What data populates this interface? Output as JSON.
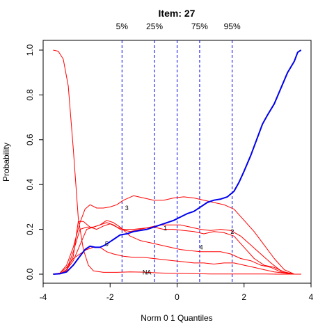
{
  "chart_data": {
    "type": "line",
    "title": "Item:  27",
    "xlabel": "Norm 0 1 Quantiles",
    "ylabel": "Probability",
    "xlim": [
      -4,
      4
    ],
    "ylim": [
      0,
      1
    ],
    "x_ticks": [
      "-4",
      "-2",
      "0",
      "2",
      "4"
    ],
    "y_ticks": [
      "0.0",
      "0.2",
      "0.4",
      "0.6",
      "0.8",
      "1.0"
    ],
    "grid": false,
    "legend": "none",
    "quantile_lines": [
      {
        "label": "5%",
        "x": -1.645
      },
      {
        "label": "25%",
        "x": -0.674
      },
      {
        "label": "",
        "x": 0
      },
      {
        "label": "75%",
        "x": 0.674
      },
      {
        "label": "95%",
        "x": 1.645
      }
    ],
    "series": [
      {
        "label": "3",
        "label_at": [
          -1.5,
          0.295
        ],
        "color": "#ff0000",
        "points": [
          [
            -3.7,
            0
          ],
          [
            -3.5,
            0.005
          ],
          [
            -3.3,
            0.04
          ],
          [
            -3.1,
            0.12
          ],
          [
            -2.9,
            0.23
          ],
          [
            -2.75,
            0.29
          ],
          [
            -2.6,
            0.31
          ],
          [
            -2.4,
            0.295
          ],
          [
            -2.2,
            0.295
          ],
          [
            -2.0,
            0.3
          ],
          [
            -1.8,
            0.31
          ],
          [
            -1.6,
            0.33
          ],
          [
            -1.3,
            0.35
          ],
          [
            -1.0,
            0.34
          ],
          [
            -0.7,
            0.33
          ],
          [
            -0.4,
            0.33
          ],
          [
            -0.1,
            0.34
          ],
          [
            0.2,
            0.345
          ],
          [
            0.5,
            0.34
          ],
          [
            0.8,
            0.33
          ],
          [
            1.1,
            0.32
          ],
          [
            1.4,
            0.31
          ],
          [
            1.7,
            0.29
          ],
          [
            2.0,
            0.24
          ],
          [
            2.3,
            0.19
          ],
          [
            2.6,
            0.13
          ],
          [
            2.9,
            0.07
          ],
          [
            3.2,
            0.02
          ],
          [
            3.5,
            0
          ],
          [
            3.7,
            0
          ]
        ]
      },
      {
        "label": "2",
        "label_at": [
          1.65,
          0.19
        ],
        "color": "#ff0000",
        "points": [
          [
            -3.7,
            0
          ],
          [
            -3.5,
            0.002
          ],
          [
            -3.3,
            0.02
          ],
          [
            -3.1,
            0.1
          ],
          [
            -2.9,
            0.2
          ],
          [
            -2.7,
            0.21
          ],
          [
            -2.5,
            0.21
          ],
          [
            -2.3,
            0.22
          ],
          [
            -2.1,
            0.23
          ],
          [
            -1.9,
            0.22
          ],
          [
            -1.7,
            0.2
          ],
          [
            -1.4,
            0.19
          ],
          [
            -1.1,
            0.2
          ],
          [
            -0.8,
            0.21
          ],
          [
            -0.5,
            0.22
          ],
          [
            -0.2,
            0.22
          ],
          [
            0.1,
            0.22
          ],
          [
            0.4,
            0.21
          ],
          [
            0.7,
            0.2
          ],
          [
            1.0,
            0.195
          ],
          [
            1.3,
            0.2
          ],
          [
            1.6,
            0.195
          ],
          [
            1.9,
            0.17
          ],
          [
            2.2,
            0.13
          ],
          [
            2.5,
            0.09
          ],
          [
            2.8,
            0.05
          ],
          [
            3.1,
            0.015
          ],
          [
            3.4,
            0
          ],
          [
            3.7,
            0
          ]
        ]
      },
      {
        "label": "1",
        "label_at": [
          -0.35,
          0.205
        ],
        "color": "#ff0000",
        "points": [
          [
            -3.7,
            0
          ],
          [
            -3.5,
            0.001
          ],
          [
            -3.3,
            0.015
          ],
          [
            -3.1,
            0.08
          ],
          [
            -2.95,
            0.235
          ],
          [
            -2.8,
            0.235
          ],
          [
            -2.6,
            0.21
          ],
          [
            -2.4,
            0.2
          ],
          [
            -2.2,
            0.215
          ],
          [
            -2.0,
            0.225
          ],
          [
            -1.8,
            0.21
          ],
          [
            -1.6,
            0.2
          ],
          [
            -1.3,
            0.2
          ],
          [
            -1.0,
            0.205
          ],
          [
            -0.7,
            0.21
          ],
          [
            -0.4,
            0.2
          ],
          [
            -0.1,
            0.2
          ],
          [
            0.2,
            0.195
          ],
          [
            0.5,
            0.19
          ],
          [
            0.8,
            0.18
          ],
          [
            1.1,
            0.19
          ],
          [
            1.4,
            0.185
          ],
          [
            1.7,
            0.17
          ],
          [
            2.0,
            0.12
          ],
          [
            2.3,
            0.07
          ],
          [
            2.6,
            0.04
          ],
          [
            2.9,
            0.03
          ],
          [
            3.2,
            0.01
          ],
          [
            3.5,
            0
          ],
          [
            3.7,
            0
          ]
        ]
      },
      {
        "label": "4",
        "label_at": [
          0.72,
          0.12
        ],
        "color": "#ff0000",
        "points": [
          [
            -3.7,
            0
          ],
          [
            -3.5,
            0.002
          ],
          [
            -3.3,
            0.02
          ],
          [
            -3.1,
            0.06
          ],
          [
            -2.9,
            0.13
          ],
          [
            -2.7,
            0.2
          ],
          [
            -2.5,
            0.21
          ],
          [
            -2.3,
            0.22
          ],
          [
            -2.1,
            0.24
          ],
          [
            -1.9,
            0.23
          ],
          [
            -1.7,
            0.21
          ],
          [
            -1.4,
            0.17
          ],
          [
            -1.1,
            0.15
          ],
          [
            -0.8,
            0.14
          ],
          [
            -0.5,
            0.13
          ],
          [
            -0.2,
            0.12
          ],
          [
            0.1,
            0.11
          ],
          [
            0.4,
            0.105
          ],
          [
            0.7,
            0.1
          ],
          [
            1.0,
            0.1
          ],
          [
            1.3,
            0.1
          ],
          [
            1.6,
            0.09
          ],
          [
            1.9,
            0.07
          ],
          [
            2.2,
            0.06
          ],
          [
            2.5,
            0.04
          ],
          [
            2.8,
            0.03
          ],
          [
            3.1,
            0.01
          ],
          [
            3.4,
            0
          ],
          [
            3.7,
            0
          ]
        ]
      },
      {
        "label": "5",
        "label_at": [
          -2.1,
          0.135
        ],
        "color": "#ff0000",
        "points": [
          [
            -3.7,
            0
          ],
          [
            -3.5,
            0.005
          ],
          [
            -3.3,
            0.03
          ],
          [
            -3.1,
            0.07
          ],
          [
            -2.9,
            0.09
          ],
          [
            -2.7,
            0.11
          ],
          [
            -2.5,
            0.12
          ],
          [
            -2.3,
            0.12
          ],
          [
            -2.1,
            0.1
          ],
          [
            -1.9,
            0.09
          ],
          [
            -1.6,
            0.08
          ],
          [
            -1.3,
            0.075
          ],
          [
            -1.0,
            0.075
          ],
          [
            -0.7,
            0.07
          ],
          [
            -0.4,
            0.065
          ],
          [
            -0.1,
            0.06
          ],
          [
            0.2,
            0.055
          ],
          [
            0.5,
            0.05
          ],
          [
            0.8,
            0.05
          ],
          [
            1.1,
            0.045
          ],
          [
            1.4,
            0.05
          ],
          [
            1.7,
            0.05
          ],
          [
            2.0,
            0.04
          ],
          [
            2.3,
            0.03
          ],
          [
            2.6,
            0.02
          ],
          [
            2.9,
            0.01
          ],
          [
            3.2,
            0.005
          ],
          [
            3.5,
            0
          ],
          [
            3.7,
            0
          ]
        ]
      },
      {
        "label": "NA",
        "label_at": [
          -0.9,
          0.008
        ],
        "color": "#ff0000",
        "points": [
          [
            -3.7,
            1.0
          ],
          [
            -3.55,
            0.995
          ],
          [
            -3.4,
            0.96
          ],
          [
            -3.25,
            0.84
          ],
          [
            -3.1,
            0.56
          ],
          [
            -2.95,
            0.25
          ],
          [
            -2.8,
            0.11
          ],
          [
            -2.65,
            0.04
          ],
          [
            -2.5,
            0.015
          ],
          [
            -2.2,
            0.008
          ],
          [
            -1.8,
            0.008
          ],
          [
            -1.4,
            0.01
          ],
          [
            -1.0,
            0.009
          ],
          [
            -0.6,
            0.006
          ],
          [
            -0.2,
            0.004
          ],
          [
            0.2,
            0.003
          ],
          [
            0.6,
            0.002
          ],
          [
            1.0,
            0.001
          ],
          [
            1.5,
            0.001
          ],
          [
            2.0,
            0.001
          ],
          [
            2.5,
            0.001
          ],
          [
            3.0,
            0
          ],
          [
            3.7,
            0
          ]
        ]
      },
      {
        "label": "",
        "color": "#0000ee",
        "width": 2,
        "points": [
          [
            -3.7,
            0
          ],
          [
            -3.5,
            0.002
          ],
          [
            -3.3,
            0.01
          ],
          [
            -3.1,
            0.04
          ],
          [
            -2.9,
            0.08
          ],
          [
            -2.75,
            0.11
          ],
          [
            -2.6,
            0.125
          ],
          [
            -2.45,
            0.12
          ],
          [
            -2.3,
            0.12
          ],
          [
            -2.15,
            0.13
          ],
          [
            -2.0,
            0.145
          ],
          [
            -1.85,
            0.16
          ],
          [
            -1.7,
            0.175
          ],
          [
            -1.5,
            0.18
          ],
          [
            -1.3,
            0.19
          ],
          [
            -1.1,
            0.195
          ],
          [
            -0.9,
            0.2
          ],
          [
            -0.7,
            0.21
          ],
          [
            -0.5,
            0.22
          ],
          [
            -0.3,
            0.23
          ],
          [
            -0.1,
            0.24
          ],
          [
            0.1,
            0.255
          ],
          [
            0.3,
            0.27
          ],
          [
            0.5,
            0.28
          ],
          [
            0.7,
            0.3
          ],
          [
            0.9,
            0.32
          ],
          [
            1.1,
            0.33
          ],
          [
            1.3,
            0.335
          ],
          [
            1.5,
            0.345
          ],
          [
            1.7,
            0.37
          ],
          [
            1.85,
            0.41
          ],
          [
            2.0,
            0.46
          ],
          [
            2.2,
            0.53
          ],
          [
            2.4,
            0.61
          ],
          [
            2.55,
            0.67
          ],
          [
            2.7,
            0.71
          ],
          [
            2.9,
            0.76
          ],
          [
            3.1,
            0.83
          ],
          [
            3.3,
            0.9
          ],
          [
            3.5,
            0.95
          ],
          [
            3.6,
            0.99
          ],
          [
            3.7,
            1.0
          ]
        ]
      }
    ]
  }
}
